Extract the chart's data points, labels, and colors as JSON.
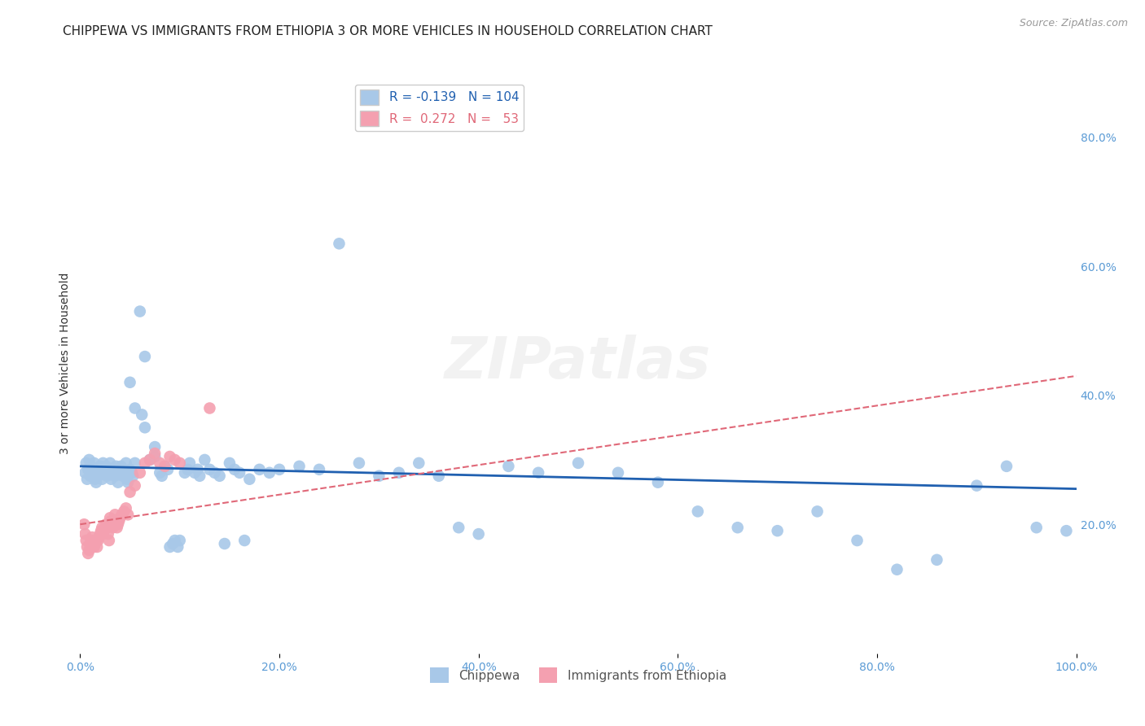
{
  "title": "CHIPPEWA VS IMMIGRANTS FROM ETHIOPIA 3 OR MORE VEHICLES IN HOUSEHOLD CORRELATION CHART",
  "source": "Source: ZipAtlas.com",
  "ylabel": "3 or more Vehicles in Household",
  "xlim": [
    0.0,
    1.0
  ],
  "ylim": [
    0.0,
    0.9
  ],
  "xticks": [
    0.0,
    0.2,
    0.4,
    0.6,
    0.8,
    1.0
  ],
  "xticklabels": [
    "0.0%",
    "20.0%",
    "40.0%",
    "60.0%",
    "80.0%",
    "100.0%"
  ],
  "yticks_right": [
    0.2,
    0.4,
    0.6,
    0.8
  ],
  "yticklabels_right": [
    "20.0%",
    "40.0%",
    "60.0%",
    "80.0%"
  ],
  "chippewa_color": "#a8c8e8",
  "ethiopia_color": "#f4a0b0",
  "chippewa_line_color": "#2060b0",
  "ethiopia_line_color": "#e06878",
  "R_chippewa": -0.139,
  "N_chippewa": 104,
  "R_ethiopia": 0.272,
  "N_ethiopia": 53,
  "watermark": "ZIPatlas",
  "chippewa_scatter_x": [
    0.005,
    0.006,
    0.007,
    0.008,
    0.009,
    0.01,
    0.011,
    0.012,
    0.013,
    0.014,
    0.015,
    0.016,
    0.017,
    0.018,
    0.02,
    0.021,
    0.022,
    0.023,
    0.025,
    0.026,
    0.027,
    0.028,
    0.03,
    0.031,
    0.033,
    0.034,
    0.035,
    0.036,
    0.038,
    0.04,
    0.041,
    0.042,
    0.043,
    0.045,
    0.046,
    0.047,
    0.048,
    0.05,
    0.052,
    0.053,
    0.055,
    0.06,
    0.062,
    0.065,
    0.07,
    0.075,
    0.08,
    0.082,
    0.085,
    0.088,
    0.09,
    0.093,
    0.095,
    0.098,
    0.1,
    0.105,
    0.108,
    0.11,
    0.115,
    0.118,
    0.12,
    0.125,
    0.13,
    0.135,
    0.14,
    0.145,
    0.15,
    0.155,
    0.16,
    0.165,
    0.17,
    0.18,
    0.19,
    0.2,
    0.22,
    0.24,
    0.26,
    0.28,
    0.3,
    0.32,
    0.34,
    0.36,
    0.38,
    0.4,
    0.43,
    0.46,
    0.5,
    0.54,
    0.58,
    0.62,
    0.66,
    0.7,
    0.74,
    0.78,
    0.82,
    0.86,
    0.9,
    0.93,
    0.96,
    0.99,
    0.05,
    0.055,
    0.065,
    0.075
  ],
  "chippewa_scatter_y": [
    0.28,
    0.295,
    0.27,
    0.285,
    0.3,
    0.275,
    0.29,
    0.285,
    0.28,
    0.295,
    0.27,
    0.265,
    0.28,
    0.275,
    0.29,
    0.285,
    0.27,
    0.295,
    0.285,
    0.29,
    0.275,
    0.28,
    0.295,
    0.27,
    0.285,
    0.28,
    0.275,
    0.29,
    0.265,
    0.28,
    0.29,
    0.285,
    0.275,
    0.28,
    0.295,
    0.27,
    0.265,
    0.285,
    0.28,
    0.275,
    0.295,
    0.53,
    0.37,
    0.46,
    0.3,
    0.305,
    0.28,
    0.275,
    0.29,
    0.285,
    0.165,
    0.17,
    0.175,
    0.165,
    0.175,
    0.28,
    0.285,
    0.295,
    0.28,
    0.285,
    0.275,
    0.3,
    0.285,
    0.28,
    0.275,
    0.17,
    0.295,
    0.285,
    0.28,
    0.175,
    0.27,
    0.285,
    0.28,
    0.285,
    0.29,
    0.285,
    0.635,
    0.295,
    0.275,
    0.28,
    0.295,
    0.275,
    0.195,
    0.185,
    0.29,
    0.28,
    0.295,
    0.28,
    0.265,
    0.22,
    0.195,
    0.19,
    0.22,
    0.175,
    0.13,
    0.145,
    0.26,
    0.29,
    0.195,
    0.19,
    0.42,
    0.38,
    0.35,
    0.32
  ],
  "ethiopia_scatter_x": [
    0.004,
    0.005,
    0.006,
    0.007,
    0.008,
    0.009,
    0.01,
    0.011,
    0.012,
    0.013,
    0.014,
    0.015,
    0.016,
    0.017,
    0.018,
    0.019,
    0.02,
    0.021,
    0.022,
    0.023,
    0.024,
    0.025,
    0.026,
    0.027,
    0.028,
    0.029,
    0.03,
    0.031,
    0.032,
    0.033,
    0.034,
    0.035,
    0.036,
    0.037,
    0.038,
    0.039,
    0.04,
    0.042,
    0.044,
    0.046,
    0.048,
    0.05,
    0.055,
    0.06,
    0.065,
    0.07,
    0.075,
    0.08,
    0.085,
    0.09,
    0.095,
    0.1,
    0.13
  ],
  "ethiopia_scatter_y": [
    0.2,
    0.185,
    0.175,
    0.165,
    0.155,
    0.16,
    0.17,
    0.175,
    0.18,
    0.175,
    0.165,
    0.17,
    0.175,
    0.165,
    0.175,
    0.18,
    0.185,
    0.19,
    0.195,
    0.185,
    0.19,
    0.195,
    0.2,
    0.195,
    0.185,
    0.175,
    0.21,
    0.205,
    0.2,
    0.195,
    0.2,
    0.215,
    0.205,
    0.195,
    0.2,
    0.205,
    0.21,
    0.215,
    0.22,
    0.225,
    0.215,
    0.25,
    0.26,
    0.28,
    0.295,
    0.3,
    0.31,
    0.295,
    0.29,
    0.305,
    0.3,
    0.295,
    0.38
  ],
  "chippewa_line_x": [
    0.0,
    1.0
  ],
  "chippewa_line_y": [
    0.29,
    0.255
  ],
  "ethiopia_line_x": [
    0.0,
    1.0
  ],
  "ethiopia_line_y": [
    0.2,
    0.43
  ],
  "background_color": "#ffffff",
  "grid_color": "#d8d8d8",
  "title_fontsize": 11,
  "axis_label_fontsize": 10,
  "tick_fontsize": 10,
  "legend_fontsize": 11,
  "watermark_fontsize": 52,
  "watermark_alpha": 0.1
}
